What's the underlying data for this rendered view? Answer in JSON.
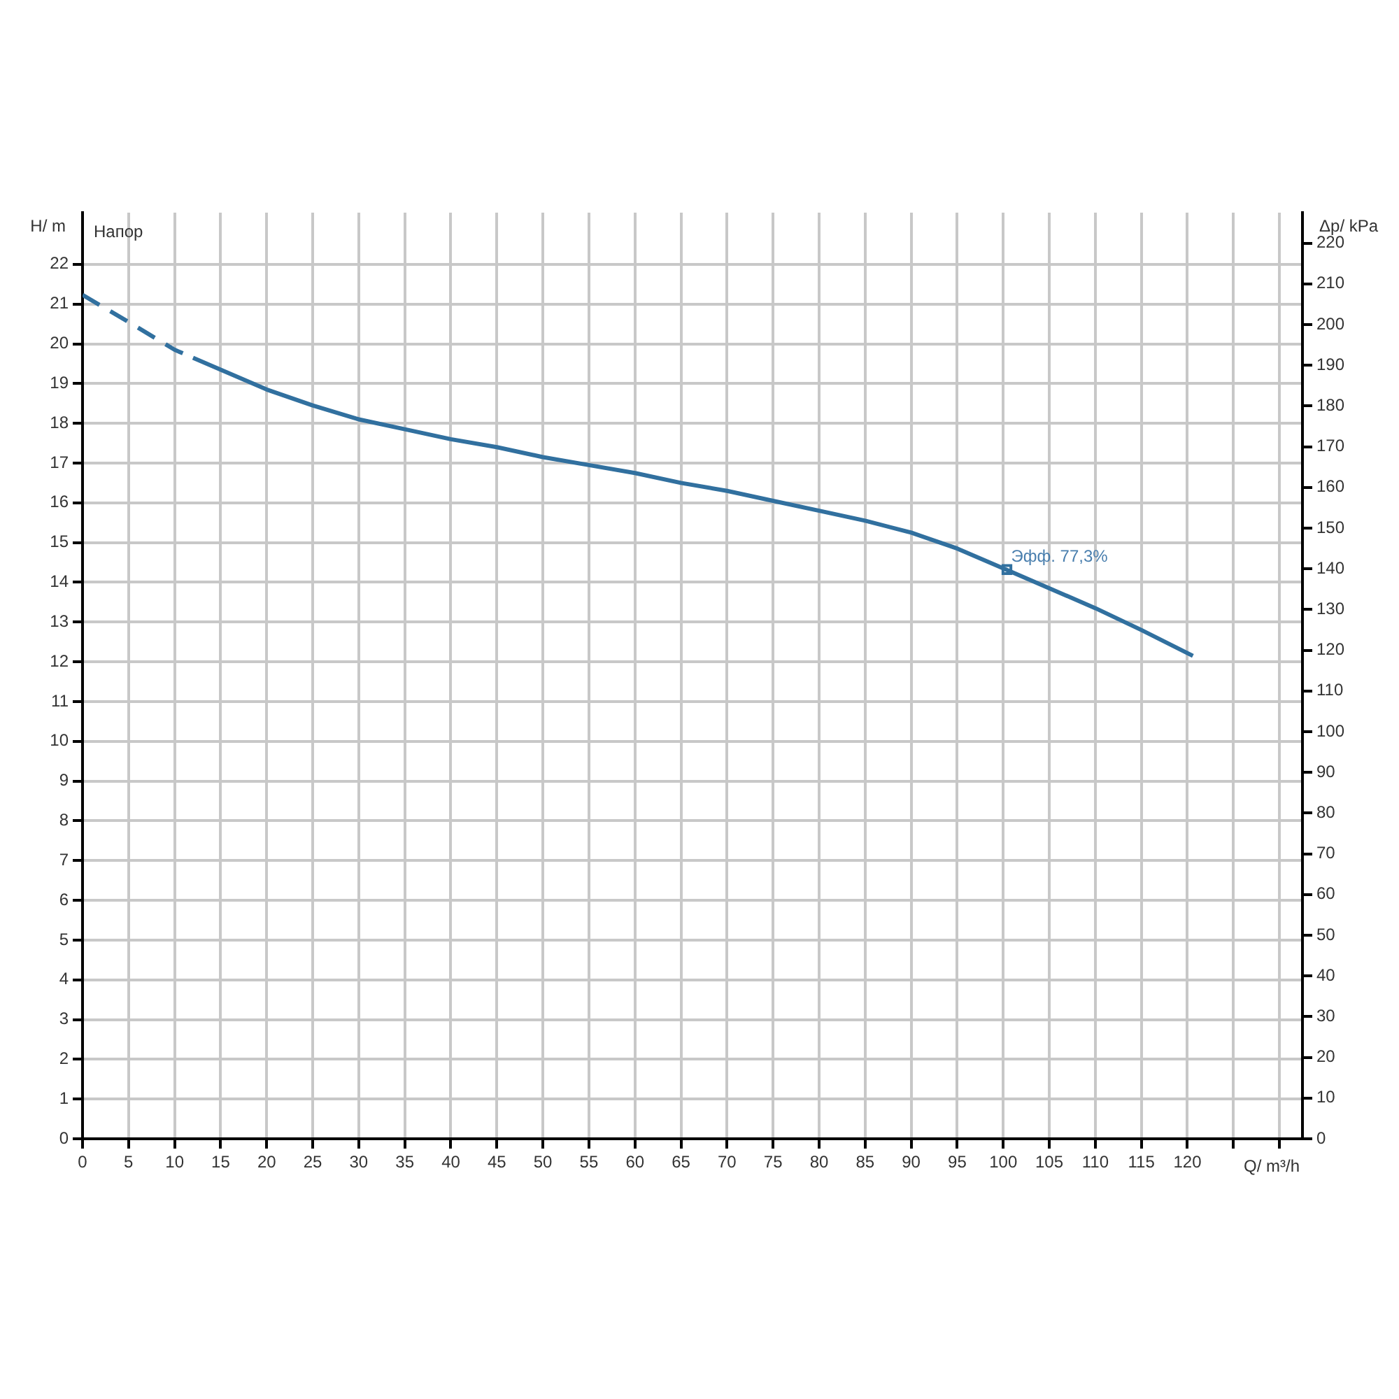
{
  "chart_data": {
    "type": "line",
    "xlabel": "Q/ m³/h",
    "ylabel": "H/ m",
    "y2label": "Δp/ kPa",
    "xlim": [
      0,
      132.5
    ],
    "xticks": [
      0,
      5,
      10,
      15,
      20,
      25,
      30,
      35,
      40,
      45,
      50,
      55,
      60,
      65,
      70,
      75,
      80,
      85,
      90,
      95,
      100,
      105,
      110,
      115,
      120,
      {
        "value": 125,
        "label": null
      },
      {
        "value": 130,
        "label": null
      }
    ],
    "ylim": [
      0,
      23.3
    ],
    "yticks": [
      0,
      1,
      2,
      3,
      4,
      5,
      6,
      7,
      8,
      9,
      10,
      11,
      12,
      13,
      14,
      15,
      16,
      17,
      18,
      19,
      20,
      21,
      22
    ],
    "y2lim": [
      0,
      227.5
    ],
    "y2ticks": [
      0,
      10,
      20,
      30,
      40,
      50,
      60,
      70,
      80,
      90,
      100,
      110,
      120,
      130,
      140,
      150,
      160,
      170,
      180,
      190,
      200,
      210,
      220
    ],
    "grid": true,
    "series": [
      {
        "type": "line",
        "line_style": "dashed",
        "color": "#31709f",
        "x": [
          0,
          5,
          10,
          12
        ],
        "values": [
          21.23,
          20.55,
          19.85,
          19.65
        ]
      },
      {
        "type": "line",
        "line_style": "solid",
        "color": "#31709f",
        "x": [
          12,
          15,
          20,
          25,
          30,
          35,
          40,
          45,
          50,
          55,
          60,
          65,
          70,
          75,
          80,
          85,
          90,
          95,
          100,
          105,
          110,
          115,
          120.6
        ],
        "values": [
          19.65,
          19.35,
          18.85,
          18.45,
          18.1,
          17.85,
          17.6,
          17.4,
          17.15,
          16.95,
          16.75,
          16.5,
          16.3,
          16.05,
          15.8,
          15.55,
          15.25,
          14.85,
          14.35,
          13.85,
          13.35,
          12.8,
          12.15
        ]
      },
      {
        "type": "scatter",
        "marker": "square",
        "color": "#31709f",
        "x": [
          100.4
        ],
        "values": [
          14.32
        ]
      }
    ],
    "annotations": [
      "Напор",
      {
        "text": "Эфф. 77,3%",
        "x": 100.4,
        "y": 14.32
      }
    ]
  }
}
